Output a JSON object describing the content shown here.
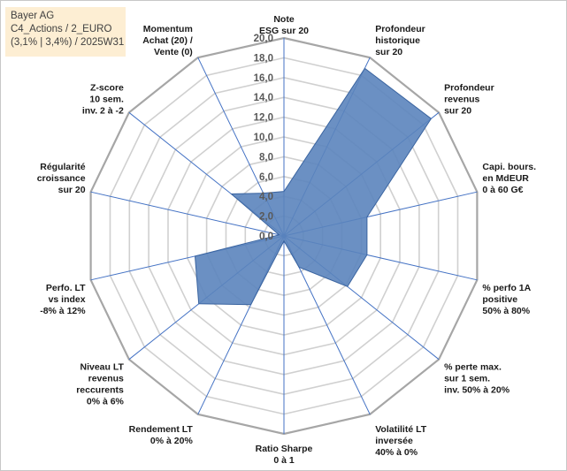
{
  "info_box": {
    "line1": "Bayer AG",
    "line2": "C4_Actions / 2_EURO",
    "line3": "(3,1% | 3,4%) / 2025W31"
  },
  "colors": {
    "grid": "#d0d0d0",
    "spoke": "#4472c4",
    "fill": "#5b84bc",
    "fill_stroke": "#3a64a0",
    "frame": "#c8c8c8",
    "info_bg": "#fdeed3"
  },
  "chart_data": {
    "type": "radar",
    "title": "",
    "range": [
      0,
      20
    ],
    "step": 2,
    "grid": true,
    "tick_labels": [
      "0,0",
      "2,0",
      "4,0",
      "6,0",
      "8,0",
      "10,0",
      "12,0",
      "14,0",
      "16,0",
      "18,0",
      "20,0"
    ],
    "categories": [
      [
        "Note",
        "ESG sur 20"
      ],
      [
        "Profondeur",
        "historique",
        "sur 20"
      ],
      [
        "Profondeur",
        "revenus",
        "sur 20"
      ],
      [
        "Capi. bours.",
        "en MdEUR",
        "0 à 60 G€"
      ],
      [
        "% perfo 1A",
        "positive",
        "50% à 80%"
      ],
      [
        "% perte max.",
        "sur 1 sem.",
        "inv. 50% à 20%"
      ],
      [
        "Volatilité LT",
        "inversée",
        "40% à 0%"
      ],
      [
        "Ratio Sharpe",
        "0 à 1"
      ],
      [
        "Rendement LT",
        "0% à 20%"
      ],
      [
        "Niveau LT",
        "revenus",
        "reccurents",
        "0% à 6%"
      ],
      [
        "Perfo. LT",
        "vs index",
        "-8% à 12%"
      ],
      [
        "Régularité",
        "croissance",
        "sur 20"
      ],
      [
        "Z-score",
        "10 sem.",
        "inv. 2 à -2"
      ],
      [
        "Momentum",
        "Achat (20) /",
        "Vente (0)"
      ]
    ],
    "series": [
      {
        "values": [
          4.5,
          18.8,
          19.0,
          8.6,
          8.6,
          8.2,
          3.5,
          0.5,
          7.7,
          11.0,
          9.2,
          0.5,
          6.8,
          4.8
        ]
      }
    ]
  }
}
